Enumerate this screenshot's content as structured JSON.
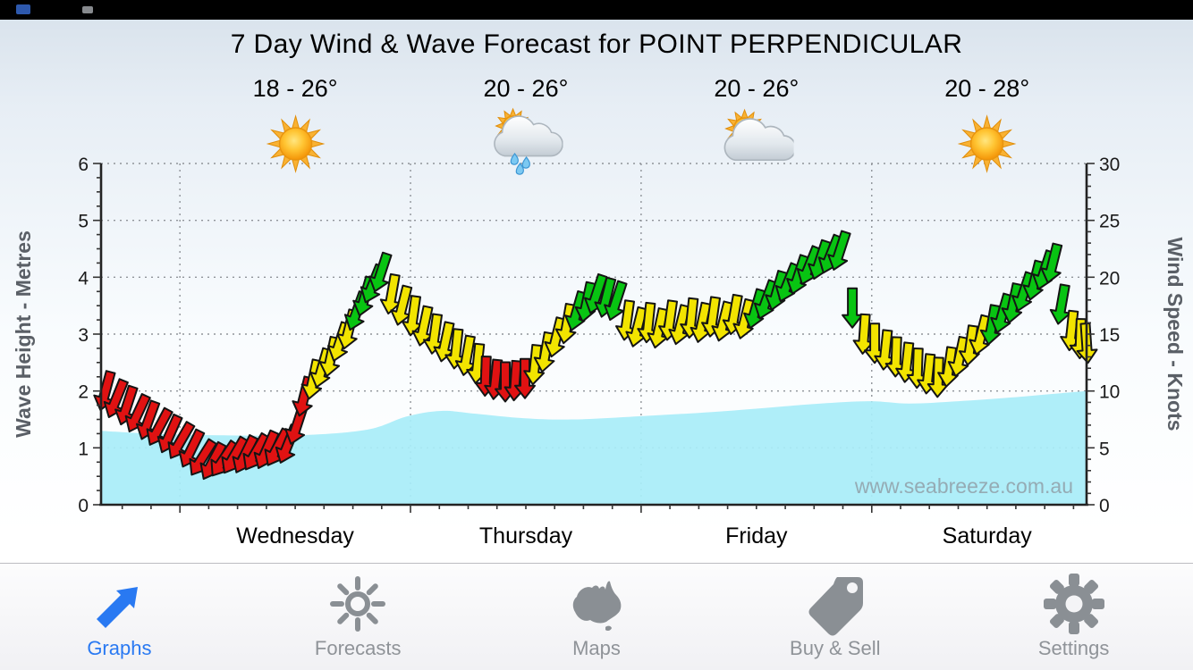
{
  "forecast": {
    "days": [
      {
        "temp": "18 - 26°",
        "icon": "sunny"
      },
      {
        "temp": "20 - 26°",
        "icon": "rain-showers"
      },
      {
        "temp": "20 - 26°",
        "icon": "partly-cloudy"
      },
      {
        "temp": "20 - 28°",
        "icon": "sunny"
      }
    ]
  },
  "chart_data": {
    "type": "line",
    "title": "7 Day Wind & Wave Forecast for POINT PERPENDICULAR",
    "watermark": "www.seabreeze.com.au",
    "left_axis": {
      "label": "Wave Height - Metres",
      "min": 0,
      "max": 6,
      "ticks": [
        0,
        1,
        2,
        3,
        4,
        5,
        6
      ]
    },
    "right_axis": {
      "label": "Wind Speed - Knots",
      "min": 0,
      "max": 30,
      "ticks": [
        0,
        5,
        10,
        15,
        20,
        25,
        30
      ]
    },
    "x_axis": {
      "labels": [
        "Wednesday",
        "Thursday",
        "Friday",
        "Saturday"
      ],
      "label_centers_t": [
        0.197,
        0.431,
        0.665,
        0.899
      ],
      "boundaries_t": [
        0.08,
        0.314,
        0.548,
        0.782
      ]
    },
    "grid": "dotted",
    "legend": "none",
    "colors": {
      "r": "#e01212",
      "y": "#f2e400",
      "g": "#08c412",
      "wave": "#a8edf8"
    },
    "wave_series": {
      "name": "Wave Height (metres)",
      "points": [
        [
          0,
          1.3
        ],
        [
          0.05,
          1.25
        ],
        [
          0.12,
          1.22
        ],
        [
          0.2,
          1.22
        ],
        [
          0.27,
          1.32
        ],
        [
          0.31,
          1.55
        ],
        [
          0.345,
          1.65
        ],
        [
          0.38,
          1.6
        ],
        [
          0.43,
          1.52
        ],
        [
          0.48,
          1.5
        ],
        [
          0.55,
          1.56
        ],
        [
          0.62,
          1.63
        ],
        [
          0.68,
          1.71
        ],
        [
          0.73,
          1.78
        ],
        [
          0.78,
          1.82
        ],
        [
          0.82,
          1.78
        ],
        [
          0.87,
          1.82
        ],
        [
          0.92,
          1.88
        ],
        [
          0.96,
          1.94
        ],
        [
          1,
          2.0
        ]
      ]
    },
    "wind_series": {
      "name": "Wind Speed (knots)",
      "point_format": [
        "t",
        "knots",
        "direction_deg",
        "color"
      ],
      "points": [
        [
          0.0045,
          10.0,
          15,
          "r"
        ],
        [
          0.0154,
          9.3,
          22,
          "r"
        ],
        [
          0.0263,
          8.7,
          18,
          "r"
        ],
        [
          0.0372,
          8.0,
          25,
          "r"
        ],
        [
          0.0481,
          7.4,
          20,
          "r"
        ],
        [
          0.059,
          6.8,
          28,
          "r"
        ],
        [
          0.0699,
          6.2,
          24,
          "r"
        ],
        [
          0.0808,
          5.6,
          30,
          "r"
        ],
        [
          0.0917,
          4.9,
          26,
          "r"
        ],
        [
          0.1025,
          4.1,
          32,
          "r"
        ],
        [
          0.1134,
          3.8,
          28,
          "r"
        ],
        [
          0.1243,
          4.0,
          34,
          "r"
        ],
        [
          0.1352,
          4.3,
          30,
          "r"
        ],
        [
          0.1461,
          4.4,
          26,
          "r"
        ],
        [
          0.157,
          4.6,
          30,
          "r"
        ],
        [
          0.1679,
          4.8,
          24,
          "r"
        ],
        [
          0.1788,
          5.0,
          28,
          "r"
        ],
        [
          0.1897,
          5.3,
          22,
          "r"
        ],
        [
          0.1988,
          7.0,
          18,
          "r"
        ],
        [
          0.206,
          9.5,
          14,
          "r"
        ],
        [
          0.2151,
          11.0,
          12,
          "y"
        ],
        [
          0.2241,
          12.0,
          16,
          "y"
        ],
        [
          0.2332,
          13.0,
          12,
          "y"
        ],
        [
          0.2423,
          14.3,
          18,
          "y"
        ],
        [
          0.2514,
          15.4,
          14,
          "y"
        ],
        [
          0.2595,
          17.0,
          20,
          "g"
        ],
        [
          0.2677,
          18.3,
          16,
          "g"
        ],
        [
          0.2759,
          19.4,
          22,
          "g"
        ],
        [
          0.284,
          20.4,
          18,
          "g"
        ],
        [
          0.2949,
          18.5,
          10,
          "y"
        ],
        [
          0.3058,
          17.5,
          14,
          "y"
        ],
        [
          0.3167,
          16.6,
          8,
          "y"
        ],
        [
          0.3276,
          15.7,
          12,
          "y"
        ],
        [
          0.3385,
          15.0,
          8,
          "y"
        ],
        [
          0.3494,
          14.3,
          12,
          "y"
        ],
        [
          0.3603,
          13.7,
          6,
          "y"
        ],
        [
          0.3712,
          13.1,
          10,
          "y"
        ],
        [
          0.382,
          12.4,
          6,
          "y"
        ],
        [
          0.3902,
          11.3,
          2,
          "r"
        ],
        [
          0.4002,
          11.0,
          6,
          "r"
        ],
        [
          0.4102,
          10.8,
          0,
          "r"
        ],
        [
          0.4202,
          10.9,
          4,
          "r"
        ],
        [
          0.4301,
          11.1,
          0,
          "r"
        ],
        [
          0.4401,
          12.3,
          6,
          "y"
        ],
        [
          0.451,
          13.4,
          10,
          "y"
        ],
        [
          0.4619,
          14.7,
          14,
          "y"
        ],
        [
          0.4728,
          15.9,
          10,
          "y"
        ],
        [
          0.4828,
          17.0,
          16,
          "g"
        ],
        [
          0.4928,
          17.8,
          12,
          "g"
        ],
        [
          0.5027,
          18.5,
          18,
          "g"
        ],
        [
          0.5127,
          18.2,
          14,
          "g"
        ],
        [
          0.5227,
          17.9,
          18,
          "g"
        ],
        [
          0.5336,
          16.2,
          8,
          "y"
        ],
        [
          0.5445,
          15.6,
          14,
          "y"
        ],
        [
          0.5554,
          16.0,
          6,
          "y"
        ],
        [
          0.5662,
          15.5,
          12,
          "y"
        ],
        [
          0.5771,
          16.2,
          8,
          "y"
        ],
        [
          0.588,
          15.8,
          14,
          "y"
        ],
        [
          0.5989,
          16.4,
          6,
          "y"
        ],
        [
          0.6098,
          16.0,
          12,
          "y"
        ],
        [
          0.6207,
          16.5,
          8,
          "y"
        ],
        [
          0.6316,
          16.1,
          14,
          "y"
        ],
        [
          0.6425,
          16.7,
          10,
          "y"
        ],
        [
          0.6534,
          16.3,
          14,
          "y"
        ],
        [
          0.6642,
          17.2,
          16,
          "g"
        ],
        [
          0.6751,
          18.0,
          20,
          "g"
        ],
        [
          0.686,
          18.8,
          16,
          "g"
        ],
        [
          0.6969,
          19.5,
          22,
          "g"
        ],
        [
          0.7078,
          20.2,
          18,
          "g"
        ],
        [
          0.7187,
          21.0,
          22,
          "g"
        ],
        [
          0.7296,
          21.5,
          18,
          "g"
        ],
        [
          0.7405,
          22.0,
          22,
          "g"
        ],
        [
          0.7496,
          22.3,
          18,
          "g"
        ],
        [
          0.7623,
          17.3,
          0,
          "g"
        ],
        [
          0.7741,
          15.0,
          4,
          "y"
        ],
        [
          0.785,
          14.2,
          0,
          "y"
        ],
        [
          0.7959,
          13.6,
          6,
          "y"
        ],
        [
          0.8067,
          13.0,
          2,
          "y"
        ],
        [
          0.8176,
          12.5,
          6,
          "y"
        ],
        [
          0.8285,
          12.0,
          2,
          "y"
        ],
        [
          0.8394,
          11.5,
          6,
          "y"
        ],
        [
          0.8494,
          11.2,
          2,
          "y"
        ],
        [
          0.8603,
          12.1,
          8,
          "y"
        ],
        [
          0.8712,
          13.0,
          12,
          "y"
        ],
        [
          0.882,
          14.0,
          8,
          "y"
        ],
        [
          0.8929,
          14.9,
          14,
          "y"
        ],
        [
          0.9038,
          15.8,
          10,
          "g"
        ],
        [
          0.9147,
          16.8,
          16,
          "g"
        ],
        [
          0.9256,
          17.7,
          12,
          "g"
        ],
        [
          0.9365,
          18.7,
          18,
          "g"
        ],
        [
          0.9474,
          19.7,
          14,
          "g"
        ],
        [
          0.9574,
          20.6,
          18,
          "g"
        ],
        [
          0.9655,
          21.2,
          14,
          "g"
        ],
        [
          0.9746,
          17.6,
          10,
          "g"
        ],
        [
          0.9846,
          15.3,
          6,
          "y"
        ],
        [
          0.9937,
          14.6,
          2,
          "y"
        ],
        [
          1.0,
          14.2,
          -4,
          "y"
        ]
      ]
    }
  },
  "tab_bar": {
    "active": "Graphs",
    "active_color": "#2979f2",
    "inactive_icon_color": "#8a8f94",
    "items": [
      {
        "label": "Graphs",
        "icon": "arrow-graph",
        "active": true
      },
      {
        "label": "Forecasts",
        "icon": "sun",
        "active": false
      },
      {
        "label": "Maps",
        "icon": "australia",
        "active": false
      },
      {
        "label": "Buy & Sell",
        "icon": "tag",
        "active": false
      },
      {
        "label": "Settings",
        "icon": "gear",
        "active": false
      }
    ]
  }
}
